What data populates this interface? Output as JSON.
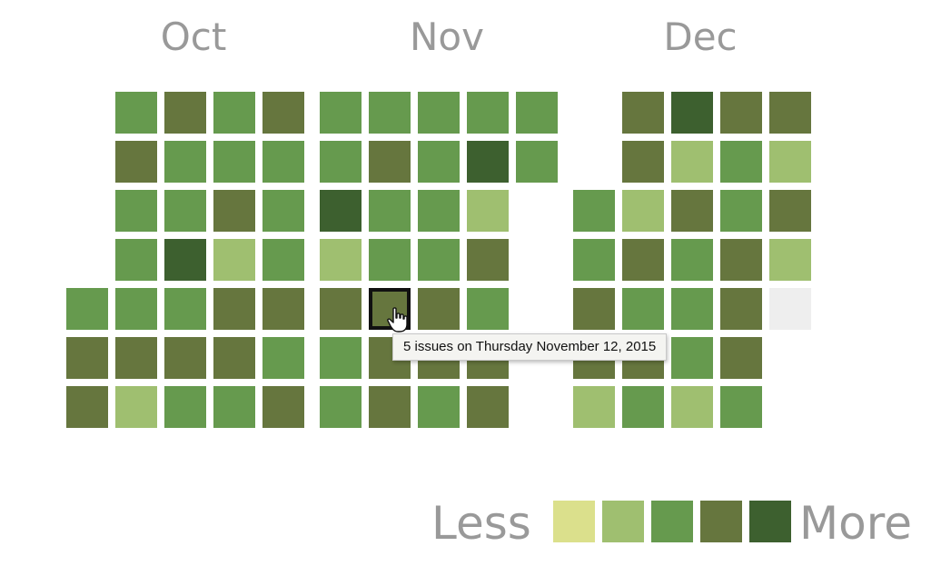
{
  "months": [
    {
      "label": "Oct",
      "weeks": [
        [
          "empty",
          "empty",
          "empty",
          "empty",
          "l2",
          "l3",
          "l3"
        ],
        [
          "l2",
          "l3",
          "l2",
          "l2",
          "l2",
          "l3",
          "l1"
        ],
        [
          "l3",
          "l2",
          "l2",
          "l4",
          "l2",
          "l3",
          "l2"
        ],
        [
          "l2",
          "l2",
          "l3",
          "l1",
          "l3",
          "l3",
          "l2"
        ],
        [
          "l3",
          "l2",
          "l2",
          "l2",
          "l3",
          "l2",
          "l3"
        ]
      ]
    },
    {
      "label": "Nov",
      "weeks": [
        [
          "l2",
          "l2",
          "l4",
          "l1",
          "l3",
          "l2",
          "l2"
        ],
        [
          "l2",
          "l3",
          "l2",
          "l2",
          "l3",
          "l3",
          "l3"
        ],
        [
          "l2",
          "l2",
          "l2",
          "l2",
          "l3",
          "l3",
          "l2"
        ],
        [
          "l2",
          "l4",
          "l1",
          "l3",
          "l2",
          "l3",
          "l3"
        ],
        [
          "l2",
          "l2",
          "empty",
          "empty",
          "empty",
          "empty",
          "empty"
        ]
      ]
    },
    {
      "label": "Dec",
      "weeks": [
        [
          "empty",
          "empty",
          "l2",
          "l2",
          "l3",
          "l3",
          "l1"
        ],
        [
          "l3",
          "l3",
          "l1",
          "l3",
          "l2",
          "l3",
          "l2"
        ],
        [
          "l4",
          "l1",
          "l3",
          "l2",
          "l2",
          "l2",
          "l1"
        ],
        [
          "l3",
          "l2",
          "l2",
          "l3",
          "l3",
          "l3",
          "l2"
        ],
        [
          "l3",
          "l1",
          "l3",
          "l1",
          "l0",
          "empty",
          "empty"
        ]
      ]
    }
  ],
  "hovered": {
    "month": 1,
    "week": 1,
    "day": 4
  },
  "tooltip": {
    "text": "5 issues on Thursday November 12, 2015"
  },
  "legend": {
    "less_label": "Less",
    "more_label": "More",
    "levels": [
      "s0",
      "s1",
      "s2",
      "s3",
      "s4"
    ]
  },
  "colors": {
    "l0": "#eeeeee",
    "l1": "#9fbf70",
    "l2": "#669a4e",
    "l3": "#66763e",
    "l4": "#3d602f",
    "s0": "#dbe08c",
    "s1": "#9fbf70",
    "s2": "#669a4e",
    "s3": "#66763e",
    "s4": "#3d602f"
  }
}
